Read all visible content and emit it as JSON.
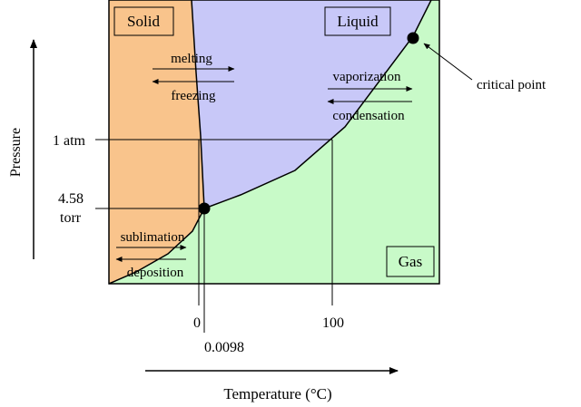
{
  "regions": {
    "solid": {
      "label": "Solid",
      "color": "#f9c48c"
    },
    "liquid": {
      "label": "Liquid",
      "color": "#c8c8f8"
    },
    "gas": {
      "label": "Gas",
      "color": "#c8fac8"
    }
  },
  "transitions": {
    "melting": "melting",
    "freezing": "freezing",
    "vaporization": "vaporization",
    "condensation": "condensation",
    "sublimation": "sublimation",
    "deposition": "deposition"
  },
  "annotations": {
    "critical_point": "critical point"
  },
  "axes": {
    "y_label": "Pressure",
    "x_label": "Temperature (°C)"
  },
  "ticks": {
    "p_1atm": "1 atm",
    "p_triple_line1": "4.58",
    "p_triple_line2": "torr",
    "t_zero": "0",
    "t_triple": "0.0098",
    "t_hundred": "100"
  }
}
